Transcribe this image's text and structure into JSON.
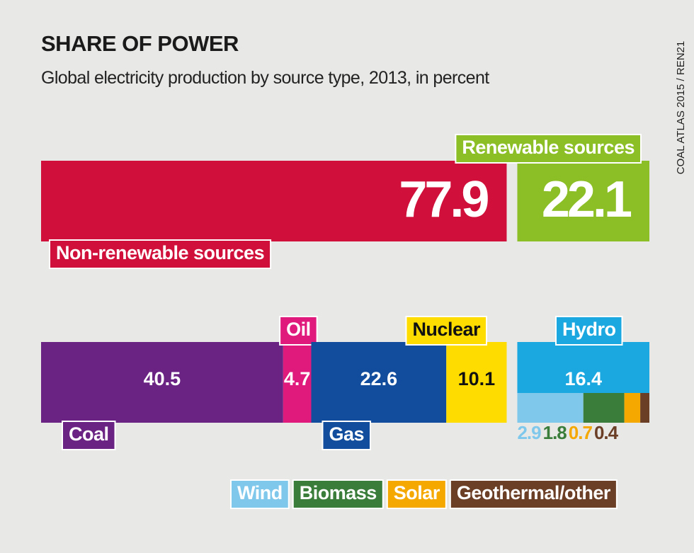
{
  "chart_data": {
    "type": "stacked-bar",
    "title": "SHARE OF POWER",
    "subtitle": "Global electricity production by source type, 2013, in percent",
    "source": "COAL ATLAS 2015 / REN21",
    "groups": [
      {
        "name": "Non-renewable sources",
        "value": 77.9,
        "color": "#d0103a",
        "sources": [
          {
            "name": "Coal",
            "value": 40.5,
            "color": "#6a2383"
          },
          {
            "name": "Oil",
            "value": 4.7,
            "color": "#e0197d"
          },
          {
            "name": "Gas",
            "value": 22.6,
            "color": "#114d9c"
          },
          {
            "name": "Nuclear",
            "value": 10.1,
            "color": "#fedc00"
          }
        ]
      },
      {
        "name": "Renewable sources",
        "value": 22.1,
        "color": "#8cbf26",
        "sources": [
          {
            "name": "Hydro",
            "value": 16.4,
            "color": "#1ba8e0"
          },
          {
            "name": "Wind",
            "value": 2.9,
            "color": "#7fc8ec"
          },
          {
            "name": "Biomass",
            "value": 1.8,
            "color": "#3a7d3b"
          },
          {
            "name": "Solar",
            "value": 0.7,
            "color": "#f5a800"
          },
          {
            "name": "Geothermal/other",
            "value": 0.4,
            "color": "#6b3e26"
          }
        ]
      }
    ]
  }
}
